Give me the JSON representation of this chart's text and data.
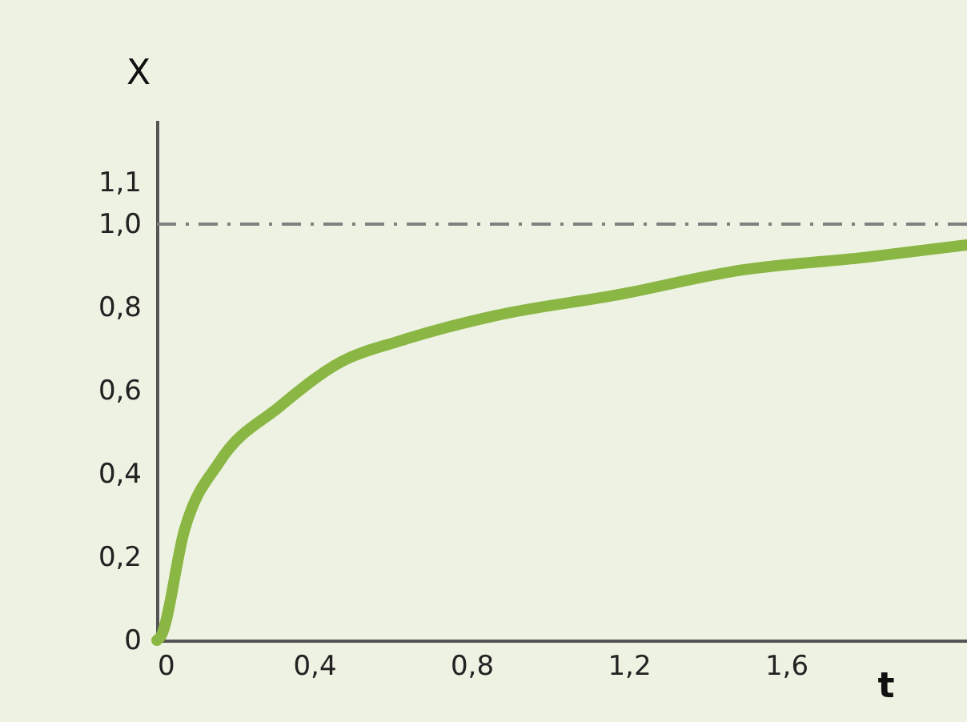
{
  "chart_data": {
    "type": "line",
    "xlabel": "t",
    "ylabel": "X",
    "x": [
      0,
      0.01,
      0.07,
      0.16,
      0.31,
      0.47,
      0.62,
      0.86,
      1.17,
      1.49,
      1.8,
      2.06
    ],
    "series": [
      {
        "color": "#8ab743",
        "values": [
          0,
          0.01,
          0.265,
          0.43,
          0.56,
          0.67,
          0.72,
          0.78,
          0.83,
          0.89,
          0.92,
          0.95
        ]
      }
    ],
    "xlim": [
      0,
      2.06
    ],
    "ylim": [
      0,
      1.25
    ],
    "xticks": [
      0,
      {
        "value": 0.4,
        "label": "0,4"
      },
      {
        "value": 0.8,
        "label": "0,8"
      },
      {
        "value": 1.2,
        "label": "1,2"
      },
      {
        "value": 1.6,
        "label": "1,6"
      }
    ],
    "yticks": [
      0,
      {
        "value": 0.2,
        "label": "0,2"
      },
      {
        "value": 0.4,
        "label": "0,4"
      },
      {
        "value": 0.6,
        "label": "0,6"
      },
      {
        "value": 0.8,
        "label": "0,8"
      },
      {
        "value": 1.0,
        "label": "1,0"
      },
      {
        "value": 1.1,
        "label": "1,1"
      }
    ],
    "ref_lines": [
      {
        "axis": "y",
        "value": 1.0,
        "color": "#808080",
        "line_style": "dashed"
      }
    ],
    "grid": false,
    "marker": "none",
    "line_style": "solid"
  }
}
